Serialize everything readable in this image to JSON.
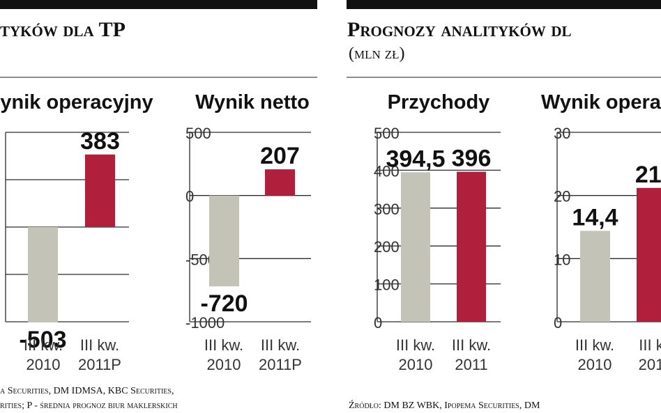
{
  "colors": {
    "bar_2010": "#c4c3b7",
    "bar_forecast": "#b01f3b",
    "grid": "#2a2a2a"
  },
  "left_panel": {
    "title": "tyków dla TP",
    "footnote_line1": "a Securities, DM IDMSA, KBC Securities,",
    "footnote_line2": "rities; P - średnia prognoz biur maklerskich"
  },
  "right_panel": {
    "title": "Prognozy analityków dl",
    "subtitle": "(mln zł)",
    "footnote": "Źródło: DM BZ WBK, Ipopema Securities, DM"
  },
  "chart_data": [
    {
      "type": "bar",
      "title": "ynik operacyjny",
      "categories": [
        "III kw.\n2010",
        "III kw.\n2011P"
      ],
      "values": [
        -503,
        383
      ],
      "value_labels": [
        "-503",
        "383"
      ],
      "ytick_labels": [
        "",
        "",
        "",
        "",
        ""
      ],
      "yticks": [
        -500,
        -250,
        0,
        250,
        500
      ],
      "ylim": [
        -500,
        500
      ]
    },
    {
      "type": "bar",
      "title": "Wynik netto",
      "categories": [
        "III kw.\n2010",
        "III kw.\n2011P"
      ],
      "values": [
        -720,
        207
      ],
      "value_labels": [
        "-720",
        "207"
      ],
      "ytick_labels": [
        "-1000",
        "-500",
        "0",
        "500"
      ],
      "yticks": [
        -1000,
        -500,
        0,
        500
      ],
      "ylim": [
        -1000,
        500
      ]
    },
    {
      "type": "bar",
      "title": "Przychody",
      "categories": [
        "III kw.\n2010",
        "III kw.\n2011"
      ],
      "values": [
        394.5,
        396
      ],
      "value_labels": [
        "394,5",
        "396"
      ],
      "ytick_labels": [
        "0",
        "100",
        "200",
        "300",
        "400",
        "500"
      ],
      "yticks": [
        0,
        100,
        200,
        300,
        400,
        500
      ],
      "ylim": [
        0,
        500
      ]
    },
    {
      "type": "bar",
      "title": "Wynik operac",
      "categories": [
        "III kw.\n2010",
        "III k\n201"
      ],
      "values": [
        14.4,
        21.2
      ],
      "value_labels": [
        "14,4",
        "21,"
      ],
      "ytick_labels": [
        "0",
        "10",
        "20",
        "30"
      ],
      "yticks": [
        0,
        10,
        20,
        30
      ],
      "ylim": [
        0,
        30
      ]
    }
  ]
}
